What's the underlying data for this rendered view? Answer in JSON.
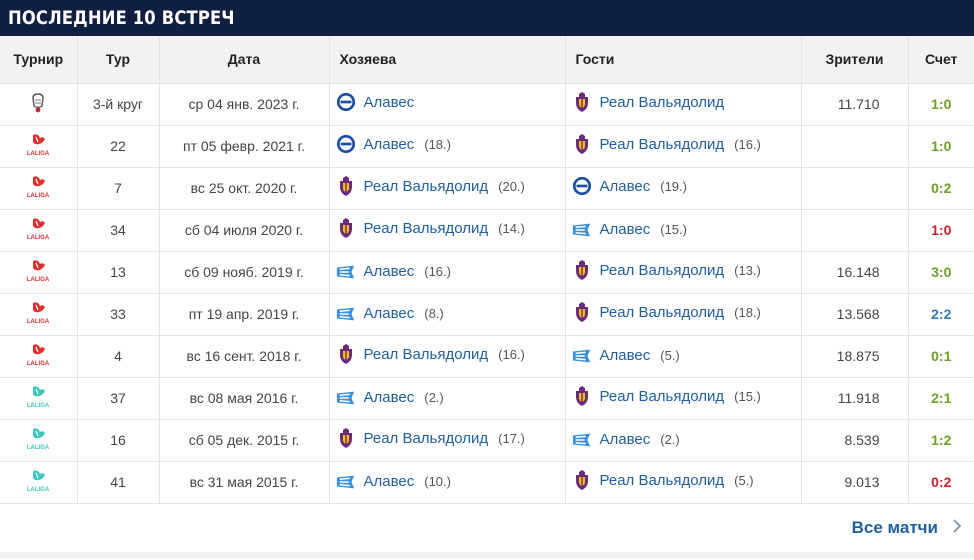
{
  "header": {
    "title": "ПОСЛЕДНИЕ 10 ВСТРЕЧ"
  },
  "columns": {
    "tournament": "Турнир",
    "round": "Тур",
    "date": "Дата",
    "home": "Хозяева",
    "away": "Гости",
    "attendance": "Зрители",
    "score": "Счет"
  },
  "colors": {
    "header_bg": "#0e1f3f",
    "link": "#1f5f9e",
    "win_green": "#6aa123",
    "draw_blue": "#2f7bbf",
    "loss_red": "#c8232c",
    "laliga_red": "#e0302e",
    "laliga_teal": "#3ec6c0"
  },
  "matches": [
    {
      "tournament_icon": "copa-del-rey-icon",
      "round": "3-й круг",
      "date": "ср 04 янв. 2023 г.",
      "home": {
        "name": "Алавес",
        "pos": "",
        "crest": "alaves-icon"
      },
      "away": {
        "name": "Реал Вальядолид",
        "pos": "",
        "crest": "valladolid-icon"
      },
      "attendance": "11.710",
      "score": "1:0",
      "score_color": "#6aa123"
    },
    {
      "tournament_icon": "laliga-icon",
      "round": "22",
      "date": "пт 05 февр. 2021 г.",
      "home": {
        "name": "Алавес",
        "pos": "(18.)",
        "crest": "alaves-icon"
      },
      "away": {
        "name": "Реал Вальядолид",
        "pos": "(16.)",
        "crest": "valladolid-icon"
      },
      "attendance": "",
      "score": "1:0",
      "score_color": "#6aa123"
    },
    {
      "tournament_icon": "laliga-icon",
      "round": "7",
      "date": "вс 25 окт. 2020 г.",
      "home": {
        "name": "Реал Вальядолид",
        "pos": "(20.)",
        "crest": "valladolid-icon"
      },
      "away": {
        "name": "Алавес",
        "pos": "(19.)",
        "crest": "alaves-icon"
      },
      "attendance": "",
      "score": "0:2",
      "score_color": "#6aa123"
    },
    {
      "tournament_icon": "laliga-icon",
      "round": "34",
      "date": "сб 04 июля 2020 г.",
      "home": {
        "name": "Реал Вальядолид",
        "pos": "(14.)",
        "crest": "valladolid-icon"
      },
      "away": {
        "name": "Алавес",
        "pos": "(15.)",
        "crest": "alaves-flag-icon"
      },
      "attendance": "",
      "score": "1:0",
      "score_color": "#c8232c"
    },
    {
      "tournament_icon": "laliga-icon",
      "round": "13",
      "date": "сб 09 нояб. 2019 г.",
      "home": {
        "name": "Алавес",
        "pos": "(16.)",
        "crest": "alaves-flag-icon"
      },
      "away": {
        "name": "Реал Вальядолид",
        "pos": "(13.)",
        "crest": "valladolid-icon"
      },
      "attendance": "16.148",
      "score": "3:0",
      "score_color": "#6aa123"
    },
    {
      "tournament_icon": "laliga-icon",
      "round": "33",
      "date": "пт 19 апр. 2019 г.",
      "home": {
        "name": "Алавес",
        "pos": "(8.)",
        "crest": "alaves-flag-icon"
      },
      "away": {
        "name": "Реал Вальядолид",
        "pos": "(18.)",
        "crest": "valladolid-icon"
      },
      "attendance": "13.568",
      "score": "2:2",
      "score_color": "#2f7bbf"
    },
    {
      "tournament_icon": "laliga-icon",
      "round": "4",
      "date": "вс 16 сент. 2018 г.",
      "home": {
        "name": "Реал Вальядолид",
        "pos": "(16.)",
        "crest": "valladolid-icon"
      },
      "away": {
        "name": "Алавес",
        "pos": "(5.)",
        "crest": "alaves-flag-icon"
      },
      "attendance": "18.875",
      "score": "0:1",
      "score_color": "#6aa123"
    },
    {
      "tournament_icon": "laliga2-icon",
      "round": "37",
      "date": "вс 08 мая 2016 г.",
      "home": {
        "name": "Алавес",
        "pos": "(2.)",
        "crest": "alaves-flag-icon"
      },
      "away": {
        "name": "Реал Вальядолид",
        "pos": "(15.)",
        "crest": "valladolid-icon"
      },
      "attendance": "11.918",
      "score": "2:1",
      "score_color": "#6aa123"
    },
    {
      "tournament_icon": "laliga2-icon",
      "round": "16",
      "date": "сб 05 дек. 2015 г.",
      "home": {
        "name": "Реал Вальядолид",
        "pos": "(17.)",
        "crest": "valladolid-icon"
      },
      "away": {
        "name": "Алавес",
        "pos": "(2.)",
        "crest": "alaves-flag-icon"
      },
      "attendance": "8.539",
      "score": "1:2",
      "score_color": "#6aa123"
    },
    {
      "tournament_icon": "laliga2-icon",
      "round": "41",
      "date": "вс 31 мая 2015 г.",
      "home": {
        "name": "Алавес",
        "pos": "(10.)",
        "crest": "alaves-flag-icon"
      },
      "away": {
        "name": "Реал Вальядолид",
        "pos": "(5.)",
        "crest": "valladolid-icon"
      },
      "attendance": "9.013",
      "score": "0:2",
      "score_color": "#c8232c"
    }
  ],
  "footer": {
    "all_matches_label": "Все матчи",
    "chevron_icon": "chevron-right-icon"
  }
}
